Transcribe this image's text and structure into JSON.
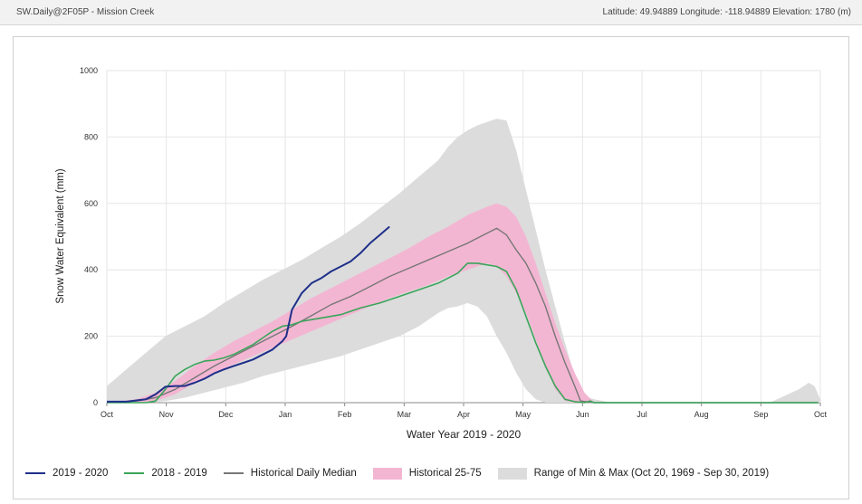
{
  "header": {
    "station": "SW.Daily@2F05P - Mission Creek",
    "location": "Latitude: 49.94889 Longitude: -118.94889 Elevation: 1780 (m)"
  },
  "colors": {
    "current": "#1f2f8a",
    "previous": "#3aa55a",
    "median": "#777777",
    "band_25_75": "#f3b6d2",
    "range_minmax": "#dcdcdc"
  },
  "chart_data": {
    "type": "line",
    "xlabel": "Water Year 2019 - 2020",
    "ylabel": "Snow Water Equivalent (mm)",
    "ylim": [
      0,
      1000
    ],
    "yticks": [
      "0",
      "200",
      "400",
      "600",
      "800",
      "1000"
    ],
    "xticks": [
      "Oct",
      "Nov",
      "Dec",
      "Jan",
      "Feb",
      "Mar",
      "Apr",
      "May",
      "Jun",
      "Jul",
      "Aug",
      "Sep",
      "Oct"
    ],
    "grid": true,
    "legend_position": "bottom",
    "x_day_range": [
      0,
      366
    ],
    "series": [
      {
        "name": "2019 - 2020",
        "key": "current",
        "x": [
          0,
          10,
          20,
          25,
          30,
          35,
          40,
          45,
          50,
          55,
          60,
          65,
          70,
          75,
          80,
          85,
          90,
          92,
          95,
          100,
          105,
          110,
          115,
          120,
          125,
          130,
          135,
          140,
          145
        ],
        "y": [
          3,
          3,
          10,
          25,
          48,
          50,
          50,
          60,
          72,
          88,
          100,
          110,
          120,
          130,
          145,
          160,
          185,
          200,
          280,
          330,
          360,
          375,
          395,
          410,
          425,
          450,
          480,
          505,
          530
        ]
      },
      {
        "name": "2018 - 2019",
        "key": "previous",
        "x": [
          0,
          20,
          25,
          30,
          35,
          40,
          45,
          50,
          55,
          60,
          65,
          70,
          75,
          80,
          85,
          90,
          95,
          100,
          110,
          120,
          130,
          140,
          150,
          160,
          170,
          180,
          185,
          190,
          195,
          200,
          205,
          210,
          215,
          220,
          225,
          230,
          235,
          240,
          245,
          248,
          250,
          365
        ],
        "y": [
          0,
          0,
          5,
          40,
          80,
          100,
          115,
          125,
          128,
          135,
          145,
          160,
          175,
          195,
          215,
          230,
          235,
          245,
          255,
          265,
          285,
          300,
          320,
          340,
          360,
          390,
          420,
          420,
          415,
          410,
          395,
          340,
          260,
          180,
          110,
          50,
          10,
          3,
          0,
          5,
          0,
          0
        ]
      },
      {
        "name": "Historical Daily Median",
        "key": "median",
        "x": [
          0,
          15,
          25,
          35,
          45,
          55,
          65,
          75,
          85,
          95,
          105,
          115,
          125,
          135,
          145,
          155,
          165,
          175,
          185,
          195,
          200,
          205,
          210,
          215,
          220,
          225,
          230,
          235,
          240,
          243,
          250,
          365
        ],
        "y": [
          0,
          5,
          15,
          40,
          75,
          110,
          140,
          170,
          200,
          230,
          262,
          295,
          320,
          350,
          380,
          405,
          430,
          455,
          480,
          510,
          525,
          505,
          460,
          420,
          360,
          290,
          200,
          120,
          50,
          5,
          0,
          0
        ]
      },
      {
        "name": "Historical 25-75",
        "key": "band_25_75",
        "x": [
          0,
          15,
          25,
          35,
          45,
          55,
          65,
          75,
          85,
          95,
          105,
          115,
          125,
          135,
          145,
          155,
          165,
          175,
          185,
          195,
          200,
          205,
          210,
          215,
          220,
          225,
          230,
          235,
          240,
          245,
          250,
          365
        ],
        "lower": [
          0,
          0,
          5,
          25,
          60,
          90,
          115,
          140,
          165,
          190,
          215,
          240,
          265,
          290,
          315,
          335,
          355,
          380,
          400,
          420,
          410,
          380,
          330,
          270,
          190,
          110,
          40,
          5,
          0,
          0,
          0,
          0
        ],
        "upper": [
          0,
          10,
          30,
          65,
          110,
          150,
          185,
          215,
          245,
          280,
          315,
          345,
          375,
          405,
          435,
          465,
          500,
          530,
          565,
          590,
          600,
          590,
          560,
          500,
          420,
          330,
          240,
          160,
          90,
          30,
          0,
          0
        ]
      },
      {
        "name": "Range of Min & Max (Oct 20, 1969 - Sep 30, 2019)",
        "key": "range_minmax",
        "x": [
          0,
          10,
          20,
          30,
          40,
          50,
          60,
          70,
          80,
          90,
          100,
          110,
          120,
          130,
          140,
          150,
          160,
          170,
          175,
          180,
          185,
          190,
          195,
          200,
          205,
          210,
          215,
          220,
          225,
          230,
          235,
          240,
          245,
          250,
          255,
          258,
          262,
          270,
          280,
          300,
          320,
          340,
          355,
          360,
          363,
          366
        ],
        "lower": [
          0,
          0,
          0,
          5,
          15,
          30,
          45,
          60,
          80,
          95,
          110,
          125,
          140,
          160,
          180,
          200,
          230,
          270,
          285,
          290,
          300,
          290,
          260,
          200,
          150,
          90,
          40,
          10,
          0,
          0,
          0,
          0,
          0,
          0,
          0,
          0,
          0,
          0,
          0,
          0,
          0,
          0,
          0,
          0,
          0,
          0
        ],
        "upper": [
          50,
          100,
          150,
          200,
          230,
          260,
          300,
          335,
          370,
          400,
          430,
          465,
          500,
          540,
          585,
          630,
          680,
          730,
          770,
          800,
          820,
          835,
          845,
          855,
          850,
          760,
          640,
          520,
          400,
          290,
          180,
          80,
          20,
          10,
          5,
          0,
          0,
          0,
          0,
          0,
          0,
          0,
          40,
          60,
          50,
          10
        ]
      }
    ]
  }
}
